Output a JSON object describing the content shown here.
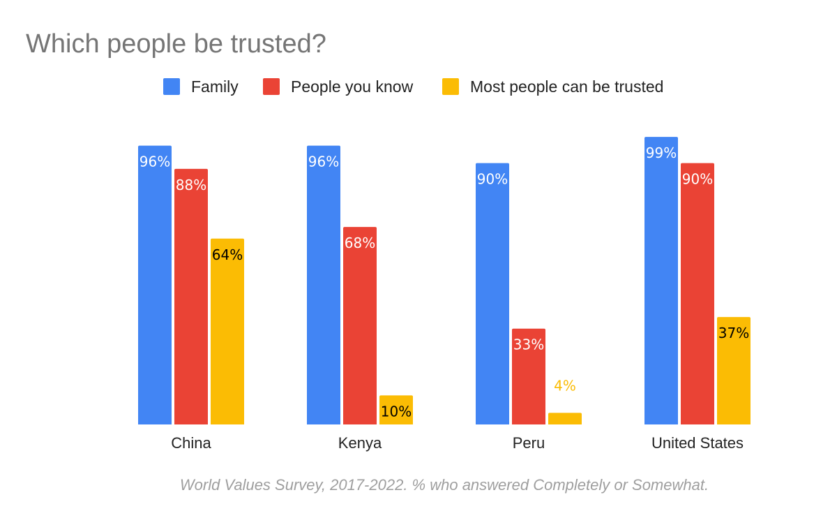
{
  "chart_data": {
    "type": "bar",
    "title": "Which people be trusted?",
    "subtitle": "",
    "xlabel": "",
    "ylabel": "",
    "categories": [
      "China",
      "Kenya",
      "Peru",
      "United States"
    ],
    "series": [
      {
        "name": "Family",
        "color": "#4285f4",
        "values": [
          96,
          96,
          90,
          99
        ],
        "labels": [
          "96%",
          "96%",
          "90%",
          "99%"
        ]
      },
      {
        "name": "People you know",
        "color": "#ea4335",
        "values": [
          88,
          68,
          33,
          90
        ],
        "labels": [
          "88%",
          "68%",
          "33%",
          "90%"
        ]
      },
      {
        "name": "Most people can be trusted",
        "color": "#fbbc04",
        "values": [
          64,
          10,
          4,
          37
        ],
        "labels": [
          "64%",
          "10%",
          "4%",
          "37%"
        ]
      }
    ],
    "ylim": [
      0,
      100
    ],
    "grid": false,
    "legend_position": "top-center",
    "note": "World Values Survey, 2017-2022. % who answered Completely or Somewhat."
  }
}
